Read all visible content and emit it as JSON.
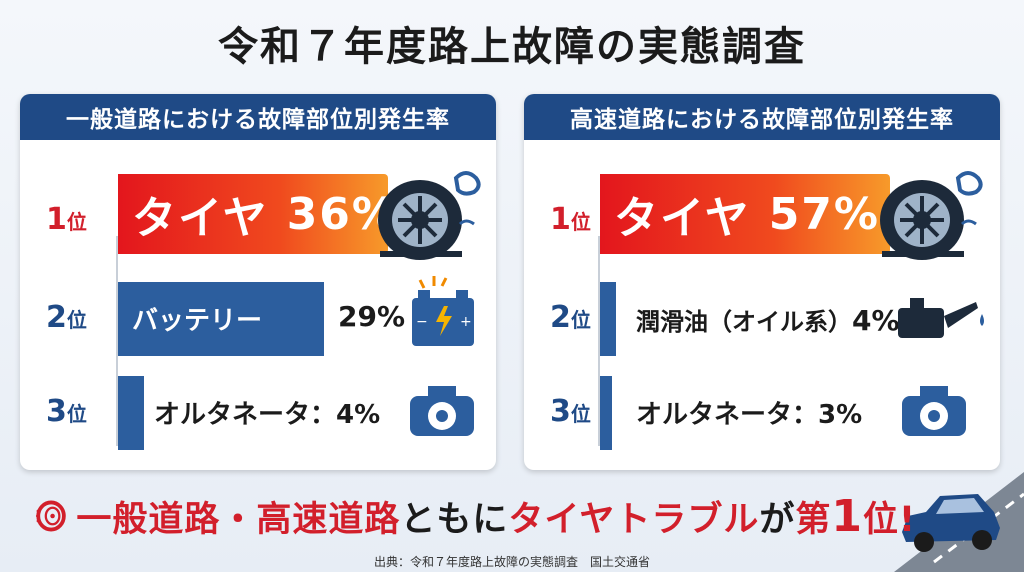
{
  "title": "令和７年度路上故障の実態調査",
  "panels": [
    {
      "header": "一般道路における故障部位別発生率",
      "rows": [
        {
          "rank": "1",
          "rank_suffix": "位",
          "label": "タイヤ",
          "value_text": "36%",
          "value": 36,
          "icon": "flat-tire-icon"
        },
        {
          "rank": "2",
          "rank_suffix": "位",
          "label": "バッテリー",
          "value_text": "29%",
          "value": 29,
          "icon": "battery-icon"
        },
        {
          "rank": "3",
          "rank_suffix": "位",
          "label": "オルタネータ：",
          "value_text": "4%",
          "value": 4,
          "icon": "alternator-icon"
        }
      ]
    },
    {
      "header": "高速道路における故障部位別発生率",
      "rows": [
        {
          "rank": "1",
          "rank_suffix": "位",
          "label": "タイヤ",
          "value_text": "57%",
          "value": 57,
          "icon": "flat-tire-icon"
        },
        {
          "rank": "2",
          "rank_suffix": "位",
          "label": "潤滑油（オイル系）",
          "value_text": "4%",
          "value": 4,
          "icon": "oil-can-icon"
        },
        {
          "rank": "3",
          "rank_suffix": "位",
          "label": "オルタネータ：",
          "value_text": "3%",
          "value": 3,
          "icon": "alternator-icon"
        }
      ]
    }
  ],
  "banner": {
    "part1": "一般道路・高速道路",
    "part2": "ともに",
    "part3": "タイヤトラブル",
    "part4": "が",
    "part5": "第",
    "part6": "1",
    "part7": "位!"
  },
  "source": "出典：令和７年度路上故障の実態調査　国土交通省",
  "colors": {
    "red": "#d21f2b",
    "navy": "#1f4a86",
    "bar_blue": "#2c5e9e",
    "orange": "#f79a2a"
  },
  "chart_data": [
    {
      "type": "bar",
      "title": "一般道路における故障部位別発生率",
      "categories": [
        "タイヤ",
        "バッテリー",
        "オルタネータ"
      ],
      "values": [
        36,
        29,
        4
      ],
      "unit": "%"
    },
    {
      "type": "bar",
      "title": "高速道路における故障部位別発生率",
      "categories": [
        "タイヤ",
        "潤滑油（オイル系）",
        "オルタネータ"
      ],
      "values": [
        57,
        4,
        3
      ],
      "unit": "%"
    }
  ]
}
